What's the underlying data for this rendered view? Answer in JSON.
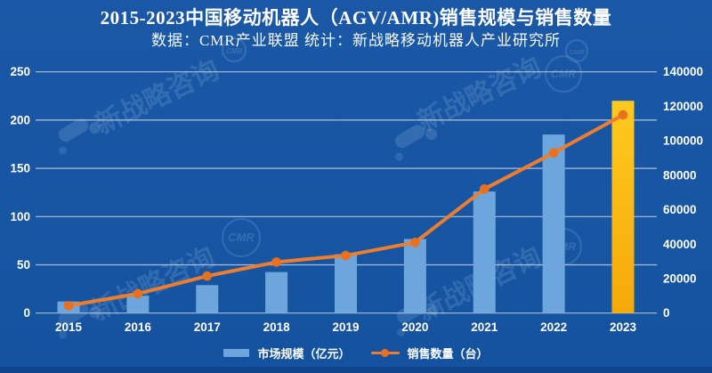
{
  "header": {
    "title": "2015-2023中国移动机器人（AGV/AMR)销售规模与销售数量",
    "subtitle": "数据：CMR产业联盟 统计：新战略移动机器人产业研究所"
  },
  "legend": {
    "bar_label": "市场规模（亿元）",
    "line_label": "销售数量（台）"
  },
  "watermark": {
    "text": "新战略咨询",
    "logo": "CMR"
  },
  "colors": {
    "background": "#1655A2",
    "bar": "#6CA6DC",
    "bar_highlight_top": "#FFC91F",
    "bar_highlight_bottom": "#F5A90A",
    "line": "#EE7D2F",
    "marker": "#E8701F",
    "grid": "#C9D2DE",
    "text": "#FFFFFF",
    "watermark": "#BFD8F2"
  },
  "chart_data": {
    "type": "combo",
    "title": "2015-2023中国移动机器人（AGV/AMR)销售规模与销售数量",
    "categories": [
      "2015",
      "2016",
      "2017",
      "2018",
      "2019",
      "2020",
      "2021",
      "2022",
      "2023"
    ],
    "series": [
      {
        "name": "市场规模（亿元）",
        "type": "bar",
        "axis": "left",
        "values": [
          12,
          18,
          29,
          42.5,
          61,
          76.8,
          126,
          185,
          220
        ],
        "highlight_index": 8
      },
      {
        "name": "销售数量（台）",
        "type": "line",
        "axis": "right",
        "values": [
          4300,
          11270,
          21500,
          29600,
          33400,
          41000,
          72000,
          93000,
          115000
        ]
      }
    ],
    "left_axis": {
      "min": 0,
      "max": 250,
      "step": 50,
      "ticks": [
        0,
        50,
        100,
        150,
        200,
        250
      ]
    },
    "right_axis": {
      "min": 0,
      "max": 140000,
      "step": 20000,
      "ticks": [
        0,
        20000,
        40000,
        60000,
        80000,
        100000,
        120000,
        140000
      ]
    },
    "grid": true,
    "legend_position": "bottom"
  }
}
